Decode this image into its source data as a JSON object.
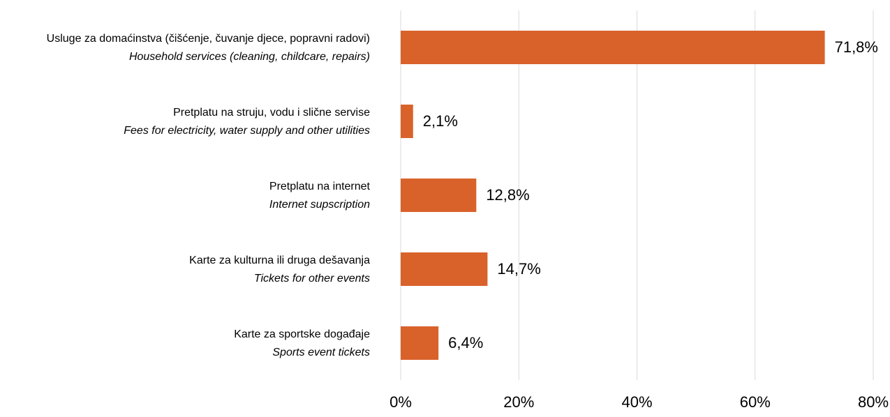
{
  "chart_data": {
    "type": "hbar",
    "categories": [
      "Usluge za domaćinstva (čišćenje, čuvanje djece, popravni radovi)",
      "Pretplatu na struju, vodu i slične servise",
      "Pretplatu na internet",
      "Karte za kulturna ili druga dešavanja",
      "Karte za sportske događaje"
    ],
    "category_translations": [
      "Household services (cleaning, childcare, repairs)",
      "Fees for electricity, water supply and other utilities",
      "Internet supscription",
      "Tickets for other events",
      "Sports event tickets"
    ],
    "values": [
      71.8,
      2.1,
      12.8,
      14.7,
      6.4
    ],
    "value_labels": [
      "71,8%",
      "2,1%",
      "12,8%",
      "14,7%",
      "6,4%"
    ],
    "color": "#d9622b",
    "xlim": [
      0,
      80
    ],
    "xticks": [
      {
        "value": 0,
        "label": "0%"
      },
      {
        "value": 20,
        "label": "20%"
      },
      {
        "value": 40,
        "label": "40%"
      },
      {
        "value": 60,
        "label": "60%"
      },
      {
        "value": 80,
        "label": "80%"
      }
    ],
    "grid": true
  }
}
